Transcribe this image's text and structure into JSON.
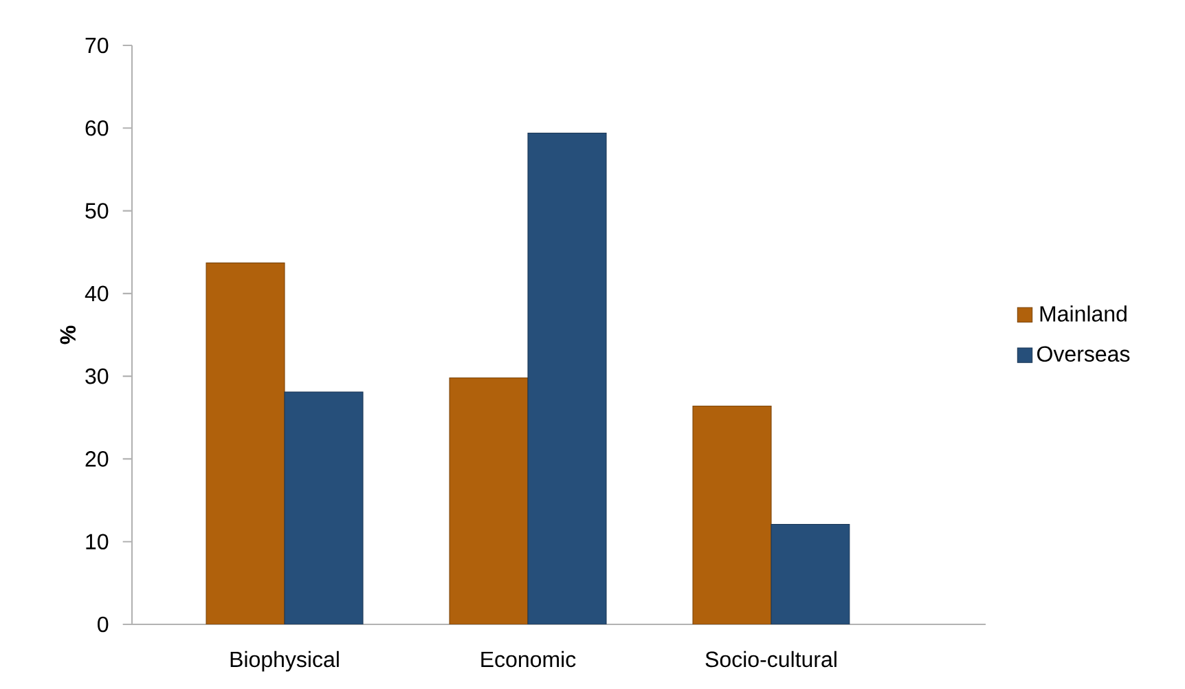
{
  "chart_data": {
    "type": "bar",
    "ylabel": "%",
    "categories": [
      "Biophysical",
      "Economic",
      "Socio-cultural"
    ],
    "series": [
      {
        "name": "Mainland",
        "color": "#b0610c",
        "values": [
          43.7,
          29.8,
          26.4
        ]
      },
      {
        "name": "Overseas",
        "color": "#264f7a",
        "values": [
          28.1,
          59.4,
          12.1
        ]
      }
    ],
    "ylim": [
      0,
      70
    ],
    "yticks": [
      0,
      10,
      20,
      30,
      40,
      50,
      60,
      70
    ],
    "grid": false,
    "legend": "right"
  }
}
